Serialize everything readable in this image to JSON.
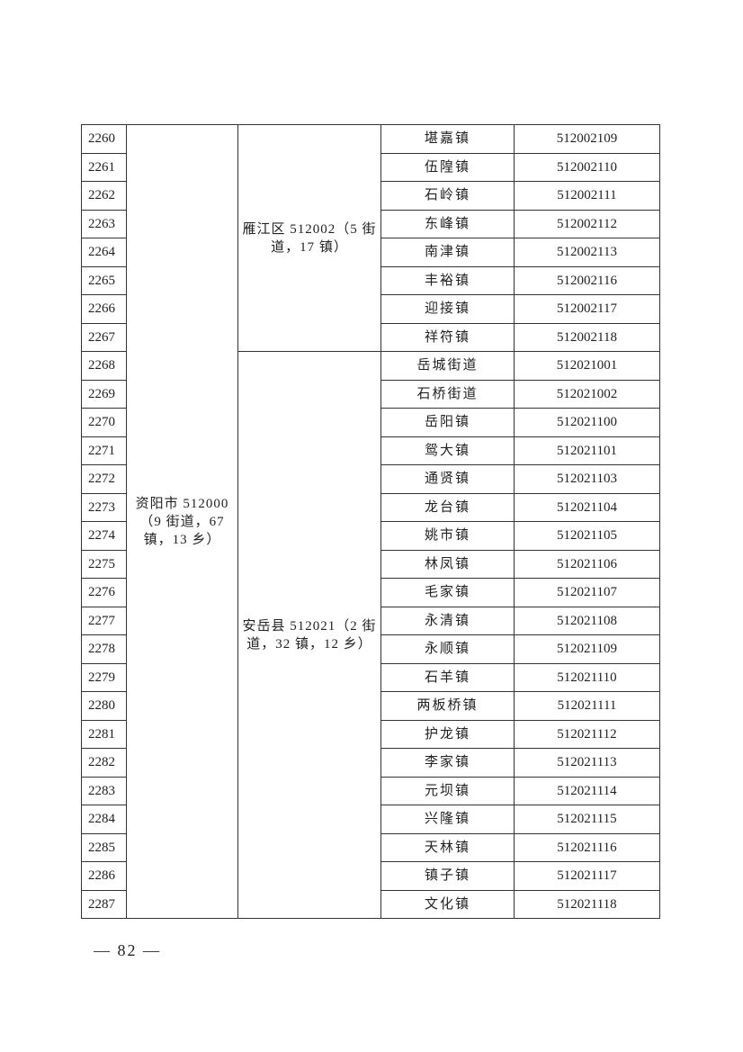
{
  "city": {
    "name": "资阳市 512000（9 街道，67 镇，13 乡）"
  },
  "districts": [
    {
      "name": "雁江区 512002（5 街道，17 镇）",
      "rows": 8
    },
    {
      "name": "安岳县 512021（2 街道，32 镇，12 乡）",
      "rows": 20
    }
  ],
  "rows": [
    {
      "num": "2260",
      "town": "堪嘉镇",
      "code": "512002109"
    },
    {
      "num": "2261",
      "town": "伍隍镇",
      "code": "512002110"
    },
    {
      "num": "2262",
      "town": "石岭镇",
      "code": "512002111"
    },
    {
      "num": "2263",
      "town": "东峰镇",
      "code": "512002112"
    },
    {
      "num": "2264",
      "town": "南津镇",
      "code": "512002113"
    },
    {
      "num": "2265",
      "town": "丰裕镇",
      "code": "512002116"
    },
    {
      "num": "2266",
      "town": "迎接镇",
      "code": "512002117"
    },
    {
      "num": "2267",
      "town": "祥符镇",
      "code": "512002118"
    },
    {
      "num": "2268",
      "town": "岳城街道",
      "code": "512021001"
    },
    {
      "num": "2269",
      "town": "石桥街道",
      "code": "512021002"
    },
    {
      "num": "2270",
      "town": "岳阳镇",
      "code": "512021100"
    },
    {
      "num": "2271",
      "town": "鸳大镇",
      "code": "512021101"
    },
    {
      "num": "2272",
      "town": "通贤镇",
      "code": "512021103"
    },
    {
      "num": "2273",
      "town": "龙台镇",
      "code": "512021104"
    },
    {
      "num": "2274",
      "town": "姚市镇",
      "code": "512021105"
    },
    {
      "num": "2275",
      "town": "林凤镇",
      "code": "512021106"
    },
    {
      "num": "2276",
      "town": "毛家镇",
      "code": "512021107"
    },
    {
      "num": "2277",
      "town": "永清镇",
      "code": "512021108"
    },
    {
      "num": "2278",
      "town": "永顺镇",
      "code": "512021109"
    },
    {
      "num": "2279",
      "town": "石羊镇",
      "code": "512021110"
    },
    {
      "num": "2280",
      "town": "两板桥镇",
      "code": "512021111"
    },
    {
      "num": "2281",
      "town": "护龙镇",
      "code": "512021112"
    },
    {
      "num": "2282",
      "town": "李家镇",
      "code": "512021113"
    },
    {
      "num": "2283",
      "town": "元坝镇",
      "code": "512021114"
    },
    {
      "num": "2284",
      "town": "兴隆镇",
      "code": "512021115"
    },
    {
      "num": "2285",
      "town": "天林镇",
      "code": "512021116"
    },
    {
      "num": "2286",
      "town": "镇子镇",
      "code": "512021117"
    },
    {
      "num": "2287",
      "town": "文化镇",
      "code": "512021118"
    }
  ],
  "footer": {
    "page": "— 82 —"
  }
}
